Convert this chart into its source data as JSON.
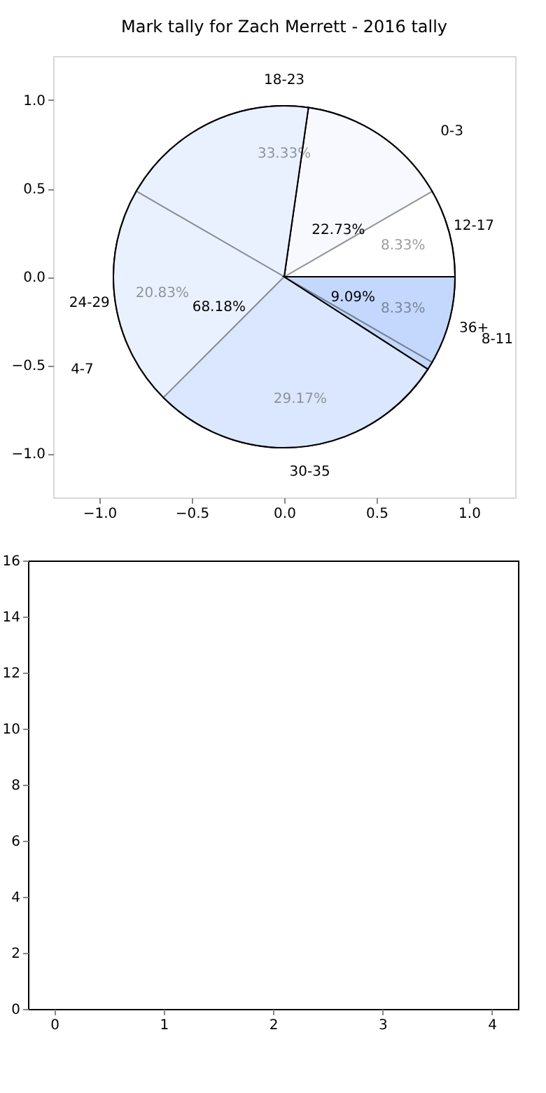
{
  "chart_data": [
    {
      "type": "scatter",
      "title": "Mark tally for Zach Merrett - 2016 tally",
      "xlim": [
        -1.25,
        1.25
      ],
      "ylim": [
        -1.25,
        1.25
      ],
      "xticks": [
        {
          "value": -1,
          "label": "−1.0"
        },
        {
          "value": -0.5,
          "label": "−0.5"
        },
        {
          "value": 0,
          "label": "0.0"
        },
        {
          "value": 0.5,
          "label": "0.5"
        },
        {
          "value": 1,
          "label": "1.0"
        }
      ],
      "yticks": [
        {
          "value": -1,
          "label": "−1.0"
        },
        {
          "value": -0.5,
          "label": "−0.5"
        },
        {
          "value": 0,
          "label": "0.0"
        },
        {
          "value": 0.5,
          "label": "0.5"
        },
        {
          "value": 1,
          "label": "1.0"
        }
      ]
    },
    {
      "type": "pie",
      "categories": [
        "12-17",
        "18-23",
        "24-29",
        "30-35",
        "36+"
      ],
      "values": [
        8.33,
        33.33,
        20.83,
        29.17,
        8.33
      ],
      "colors": [
        "#ffffff",
        "#eaf1fe",
        "#eaf1fe",
        "#c4d8fe",
        "#c4d8fe"
      ],
      "value_labels": [
        "8.33%",
        "33.33%",
        "20.83%",
        "29.17%",
        "8.33%"
      ]
    },
    {
      "type": "pie",
      "categories": [
        "0-3",
        "4-7",
        "8-11"
      ],
      "values": [
        22.73,
        68.18,
        9.09
      ],
      "colors": [
        "#ffffff",
        "#eaf1fe",
        "#c4d8fe"
      ],
      "value_labels": [
        "22.73%",
        "68.18%",
        "9.09%"
      ]
    },
    {
      "type": "scatter",
      "xlim": [
        -0.24,
        4.24
      ],
      "ylim": [
        0,
        16
      ],
      "xticks": [
        0,
        1,
        2,
        3,
        4
      ],
      "yticks": [
        0,
        2,
        4,
        6,
        8,
        10,
        12,
        14,
        16
      ]
    }
  ]
}
